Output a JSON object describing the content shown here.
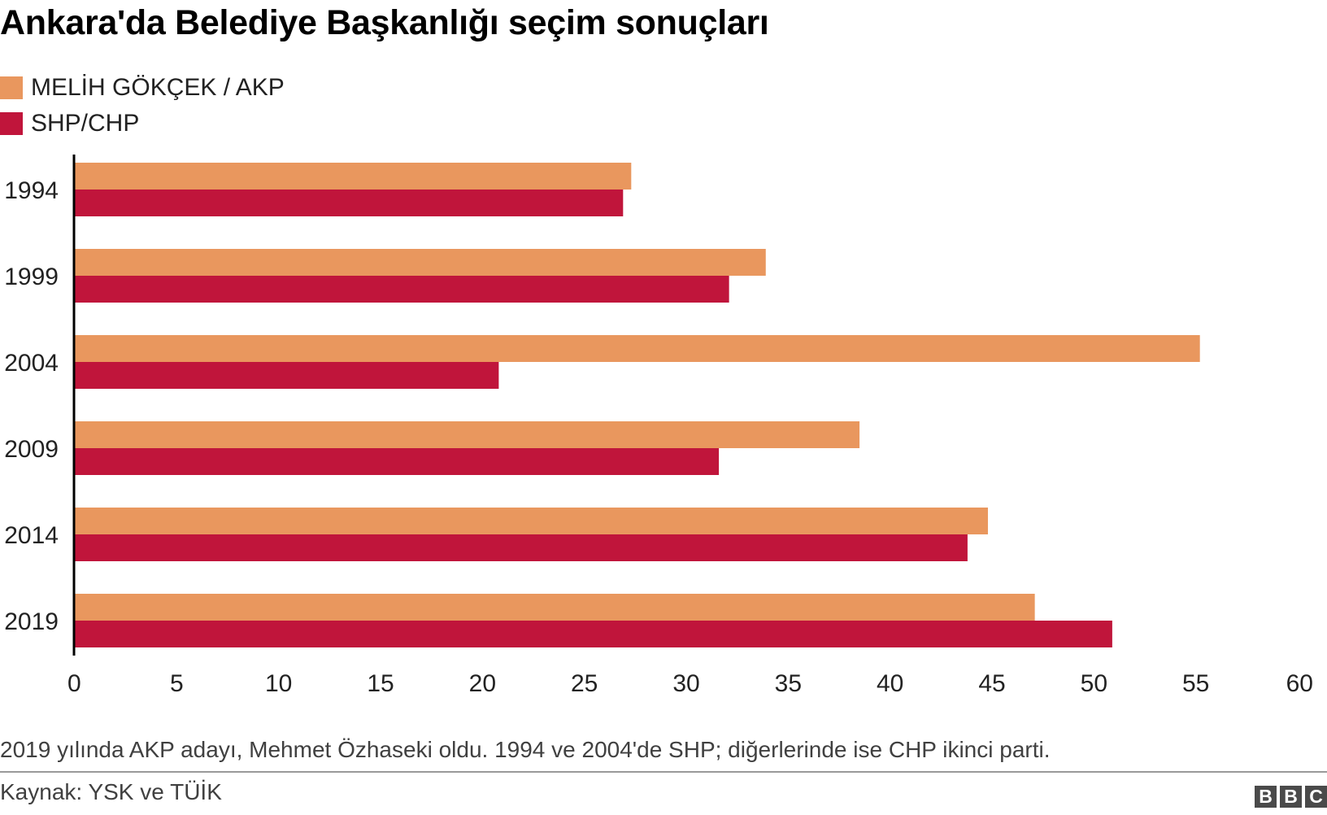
{
  "title": "Ankara'da Belediye Başkanlığı seçim sonuçları",
  "legend": [
    {
      "label": "MELİH GÖKÇEK / AKP",
      "color": "#e9975e"
    },
    {
      "label": "SHP/CHP",
      "color": "#c0153b"
    }
  ],
  "chart_data": {
    "type": "bar",
    "orientation": "horizontal",
    "title": "Ankara'da Belediye Başkanlığı seçim sonuçları",
    "categories": [
      "1994",
      "1999",
      "2004",
      "2009",
      "2014",
      "2019"
    ],
    "series": [
      {
        "name": "MELİH GÖKÇEK / AKP",
        "color": "#e9975e",
        "values": [
          27.3,
          33.9,
          55.2,
          38.5,
          44.8,
          47.1
        ]
      },
      {
        "name": "SHP/CHP",
        "color": "#c0153b",
        "values": [
          26.9,
          32.1,
          20.8,
          31.6,
          43.8,
          50.9
        ]
      }
    ],
    "xlim": [
      0,
      60
    ],
    "xticks": [
      "0",
      "5",
      "10",
      "15",
      "20",
      "25",
      "30",
      "35",
      "40",
      "45",
      "50",
      "55",
      "60"
    ],
    "grid": false,
    "legend_position": "top-left"
  },
  "footnote": "2019 yılında AKP adayı, Mehmet Özhaseki oldu. 1994 ve 2004'de SHP; diğerlerinde ise CHP ikinci parti.",
  "source": "Kaynak: YSK ve TÜİK",
  "logo": {
    "letters": [
      "B",
      "B",
      "C"
    ],
    "text": "BBC"
  }
}
